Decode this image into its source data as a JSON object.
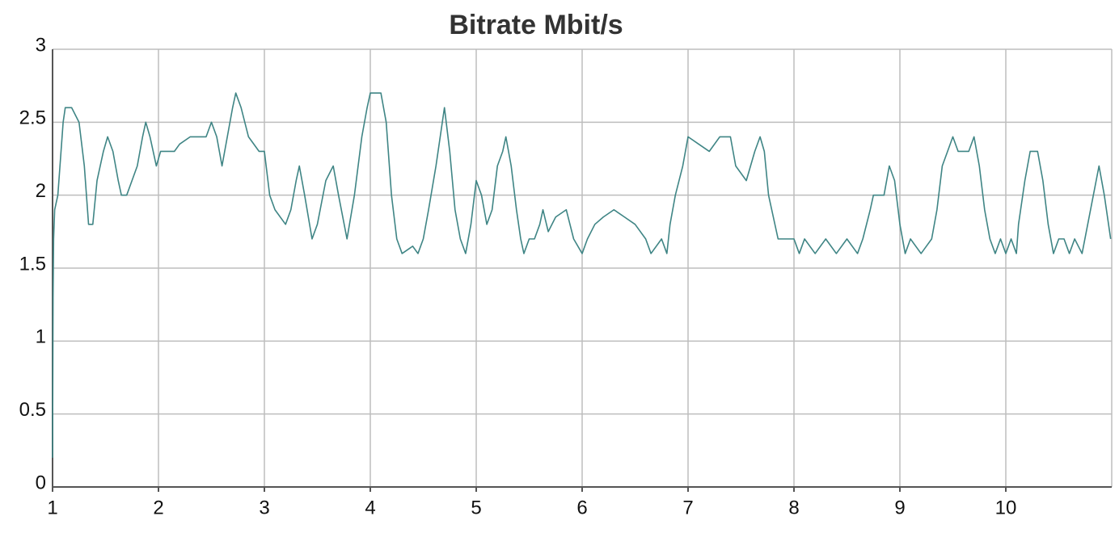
{
  "chart_data": {
    "type": "line",
    "title": "Bitrate Mbit/s",
    "color": "#3f8585",
    "grid": true,
    "xlim": [
      1,
      11
    ],
    "ylim": [
      0,
      3
    ],
    "xticks": [
      1,
      2,
      3,
      4,
      5,
      6,
      7,
      8,
      9,
      10
    ],
    "yticks": [
      0,
      0.5,
      1,
      1.5,
      2,
      2.5,
      3
    ],
    "x": [
      1.0,
      1.005,
      1.01,
      1.02,
      1.05,
      1.07,
      1.1,
      1.12,
      1.18,
      1.25,
      1.3,
      1.34,
      1.38,
      1.42,
      1.48,
      1.52,
      1.57,
      1.62,
      1.65,
      1.7,
      1.75,
      1.8,
      1.85,
      1.88,
      1.92,
      1.98,
      2.02,
      2.15,
      2.2,
      2.3,
      2.45,
      2.5,
      2.55,
      2.6,
      2.65,
      2.7,
      2.73,
      2.78,
      2.85,
      2.95,
      3.0,
      3.05,
      3.1,
      3.2,
      3.25,
      3.3,
      3.33,
      3.38,
      3.45,
      3.5,
      3.58,
      3.65,
      3.7,
      3.78,
      3.85,
      3.92,
      3.97,
      4.0,
      4.1,
      4.15,
      4.2,
      4.25,
      4.3,
      4.4,
      4.45,
      4.5,
      4.55,
      4.62,
      4.7,
      4.75,
      4.8,
      4.85,
      4.9,
      4.95,
      5.0,
      5.05,
      5.1,
      5.15,
      5.2,
      5.25,
      5.28,
      5.33,
      5.38,
      5.42,
      5.45,
      5.5,
      5.55,
      5.6,
      5.63,
      5.68,
      5.75,
      5.85,
      5.92,
      6.0,
      6.05,
      6.12,
      6.2,
      6.3,
      6.4,
      6.5,
      6.6,
      6.65,
      6.75,
      6.8,
      6.83,
      6.88,
      6.95,
      7.0,
      7.1,
      7.2,
      7.3,
      7.4,
      7.45,
      7.55,
      7.63,
      7.68,
      7.72,
      7.76,
      7.85,
      8.0,
      8.05,
      8.1,
      8.2,
      8.3,
      8.4,
      8.5,
      8.6,
      8.65,
      8.72,
      8.75,
      8.85,
      8.9,
      8.95,
      9.0,
      9.05,
      9.1,
      9.2,
      9.3,
      9.35,
      9.4,
      9.45,
      9.5,
      9.55,
      9.65,
      9.7,
      9.75,
      9.8,
      9.85,
      9.9,
      9.95,
      10.0,
      10.05,
      10.1,
      10.12,
      10.18,
      10.23,
      10.3,
      10.35,
      10.4,
      10.45,
      10.5,
      10.55,
      10.6,
      10.65,
      10.72,
      10.8,
      10.88,
      10.93,
      10.99
    ],
    "values": [
      0.2,
      1.3,
      1.7,
      1.9,
      2.0,
      2.2,
      2.5,
      2.6,
      2.6,
      2.5,
      2.2,
      1.8,
      1.8,
      2.1,
      2.3,
      2.4,
      2.3,
      2.1,
      2.0,
      2.0,
      2.1,
      2.2,
      2.4,
      2.5,
      2.4,
      2.2,
      2.3,
      2.3,
      2.35,
      2.4,
      2.4,
      2.5,
      2.4,
      2.2,
      2.4,
      2.6,
      2.7,
      2.6,
      2.4,
      2.3,
      2.3,
      2.0,
      1.9,
      1.8,
      1.9,
      2.1,
      2.2,
      2.0,
      1.7,
      1.8,
      2.1,
      2.2,
      2.0,
      1.7,
      2.0,
      2.4,
      2.6,
      2.7,
      2.7,
      2.5,
      2.0,
      1.7,
      1.6,
      1.65,
      1.6,
      1.7,
      1.9,
      2.2,
      2.6,
      2.3,
      1.9,
      1.7,
      1.6,
      1.8,
      2.1,
      2.0,
      1.8,
      1.9,
      2.2,
      2.3,
      2.4,
      2.2,
      1.9,
      1.7,
      1.6,
      1.7,
      1.7,
      1.8,
      1.9,
      1.75,
      1.85,
      1.9,
      1.7,
      1.6,
      1.7,
      1.8,
      1.85,
      1.9,
      1.85,
      1.8,
      1.7,
      1.6,
      1.7,
      1.6,
      1.8,
      2.0,
      2.2,
      2.4,
      2.35,
      2.3,
      2.4,
      2.4,
      2.2,
      2.1,
      2.3,
      2.4,
      2.3,
      2.0,
      1.7,
      1.7,
      1.6,
      1.7,
      1.6,
      1.7,
      1.6,
      1.7,
      1.6,
      1.7,
      1.9,
      2.0,
      2.0,
      2.2,
      2.1,
      1.8,
      1.6,
      1.7,
      1.6,
      1.7,
      1.9,
      2.2,
      2.3,
      2.4,
      2.3,
      2.3,
      2.4,
      2.2,
      1.9,
      1.7,
      1.6,
      1.7,
      1.6,
      1.7,
      1.6,
      1.8,
      2.1,
      2.3,
      2.3,
      2.1,
      1.8,
      1.6,
      1.7,
      1.7,
      1.6,
      1.7,
      1.6,
      1.9,
      2.2,
      2.0,
      1.7
    ]
  }
}
